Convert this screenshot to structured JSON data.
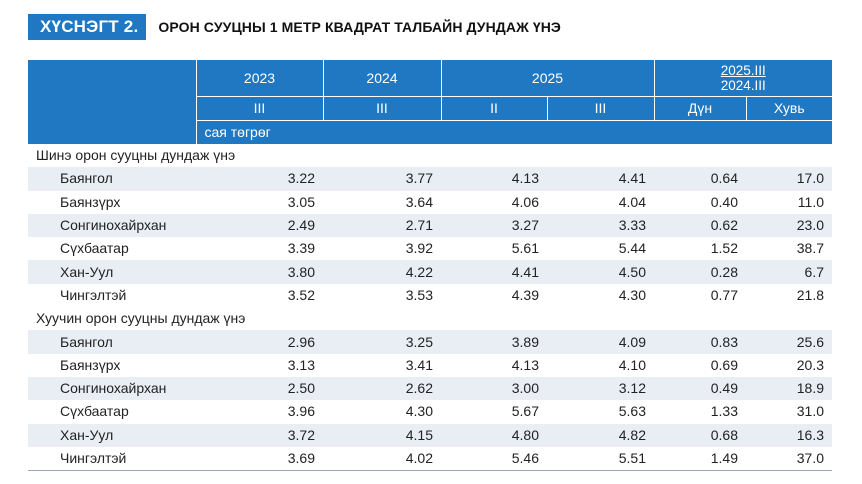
{
  "title": {
    "badge": "ХҮСНЭГТ 2.",
    "text": "ОРОН СУУЦНЫ 1 МЕТР КВАДРАТ ТАЛБАЙН ДУНДАЖ ҮНЭ"
  },
  "header": {
    "years": [
      "2023",
      "2024",
      "2025"
    ],
    "change_top": "2025.III",
    "change_bottom": "2024.III",
    "quarters": [
      "III",
      "III",
      "II",
      "III"
    ],
    "change_cols": [
      "Дүн",
      "Хувь"
    ],
    "unit": "сая төгрөг"
  },
  "sections": [
    {
      "title": "Шинэ орон сууцны дундаж үнэ",
      "rows": [
        {
          "name": "Баянгол",
          "values": [
            "3.22",
            "3.77",
            "4.13",
            "4.41",
            "0.64",
            "17.0"
          ]
        },
        {
          "name": "Баянзүрх",
          "values": [
            "3.05",
            "3.64",
            "4.06",
            "4.04",
            "0.40",
            "11.0"
          ]
        },
        {
          "name": "Сонгинохайрхан",
          "values": [
            "2.49",
            "2.71",
            "3.27",
            "3.33",
            "0.62",
            "23.0"
          ]
        },
        {
          "name": "Сүхбаатар",
          "values": [
            "3.39",
            "3.92",
            "5.61",
            "5.44",
            "1.52",
            "38.7"
          ]
        },
        {
          "name": "Хан-Уул",
          "values": [
            "3.80",
            "4.22",
            "4.41",
            "4.50",
            "0.28",
            "6.7"
          ]
        },
        {
          "name": "Чингэлтэй",
          "values": [
            "3.52",
            "3.53",
            "4.39",
            "4.30",
            "0.77",
            "21.8"
          ]
        }
      ]
    },
    {
      "title": "Хуучин орон сууцны дундаж үнэ",
      "rows": [
        {
          "name": "Баянгол",
          "values": [
            "2.96",
            "3.25",
            "3.89",
            "4.09",
            "0.83",
            "25.6"
          ]
        },
        {
          "name": "Баянзүрх",
          "values": [
            "3.13",
            "3.41",
            "4.13",
            "4.10",
            "0.69",
            "20.3"
          ]
        },
        {
          "name": "Сонгинохайрхан",
          "values": [
            "2.50",
            "2.62",
            "3.00",
            "3.12",
            "0.49",
            "18.9"
          ]
        },
        {
          "name": "Сүхбаатар",
          "values": [
            "3.96",
            "4.30",
            "5.67",
            "5.63",
            "1.33",
            "31.0"
          ]
        },
        {
          "name": "Хан-Уул",
          "values": [
            "3.72",
            "4.15",
            "4.80",
            "4.82",
            "0.68",
            "16.3"
          ]
        },
        {
          "name": "Чингэлтэй",
          "values": [
            "3.69",
            "4.02",
            "5.46",
            "5.51",
            "1.49",
            "37.0"
          ]
        }
      ]
    }
  ]
}
